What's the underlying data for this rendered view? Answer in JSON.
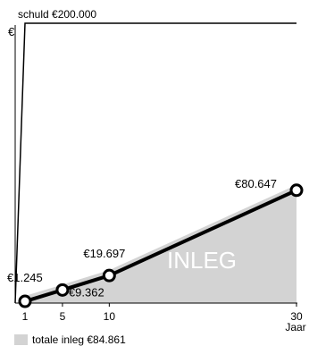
{
  "chart_data": {
    "type": "line",
    "currency_symbol": "€",
    "debt_label": "schuld €200.000",
    "debt_value": 200000,
    "xlabel": "Jaar",
    "x_ticks": [
      {
        "value": 1,
        "label": "1"
      },
      {
        "value": 5,
        "label": "5"
      },
      {
        "value": 10,
        "label": "10"
      },
      {
        "value": 30,
        "label": "30"
      }
    ],
    "xlim": [
      1,
      30
    ],
    "ylim": [
      0,
      200000
    ],
    "area_label": "INLEG",
    "series": [
      {
        "x": [
          1,
          5,
          10,
          30
        ],
        "y": [
          1245,
          9362,
          19697,
          80647
        ],
        "labels": [
          "€1.245",
          "€9.362",
          "€19.697",
          "€80.647"
        ]
      }
    ],
    "legend": {
      "label": "totale inleg €84.861",
      "value": 84861,
      "placement": "bottom-left"
    },
    "colors": {
      "area_fill": "#d3d3d3",
      "line": "#000000",
      "marker_fill": "#ffffff",
      "inleg_text": "#ffffff"
    }
  }
}
